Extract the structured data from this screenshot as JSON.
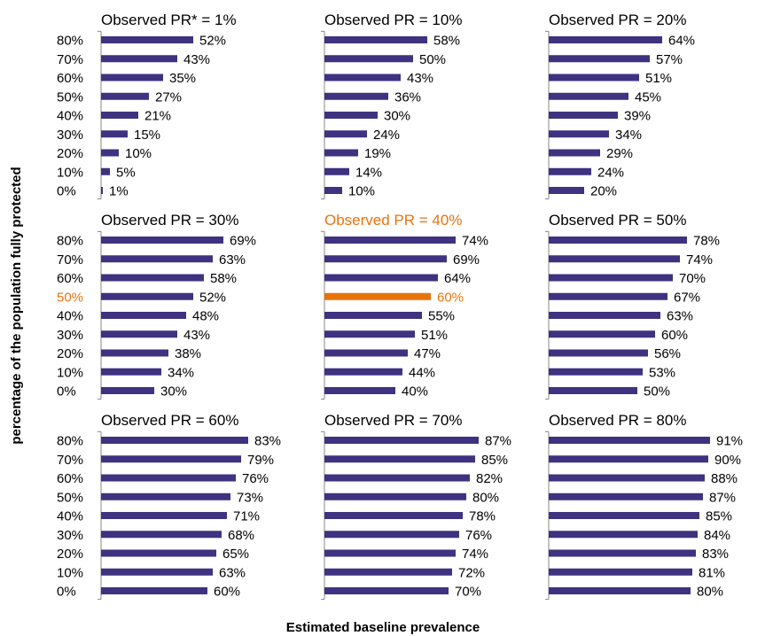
{
  "chart_data": {
    "type": "bar",
    "orientation": "horizontal",
    "xlabel": "Estimated baseline prevalence",
    "ylabel": "percentage of the population fully protected",
    "categories": [
      "80%",
      "70%",
      "60%",
      "50%",
      "40%",
      "30%",
      "20%",
      "10%",
      "0%"
    ],
    "bar_color": "#3f3280",
    "highlight_color": "#e8730c",
    "highlight": {
      "panel": 4,
      "category": "50%"
    },
    "xlim": [
      0,
      100
    ],
    "panels": [
      {
        "title": "Observed PR* = 1%",
        "values": [
          52,
          43,
          35,
          27,
          21,
          15,
          10,
          5,
          1
        ],
        "labels": [
          "52%",
          "43%",
          "35%",
          "27%",
          "21%",
          "15%",
          "10%",
          "5%",
          "1%"
        ]
      },
      {
        "title": "Observed PR = 10%",
        "values": [
          58,
          50,
          43,
          36,
          30,
          24,
          19,
          14,
          10
        ],
        "labels": [
          "58%",
          "50%",
          "43%",
          "36%",
          "30%",
          "24%",
          "19%",
          "14%",
          "10%"
        ]
      },
      {
        "title": "Observed PR = 20%",
        "values": [
          64,
          57,
          51,
          45,
          39,
          34,
          29,
          24,
          20
        ],
        "labels": [
          "64%",
          "57%",
          "51%",
          "45%",
          "39%",
          "34%",
          "29%",
          "24%",
          "20%"
        ]
      },
      {
        "title": "Observed PR = 30%",
        "values": [
          69,
          63,
          58,
          52,
          48,
          43,
          38,
          34,
          30
        ],
        "labels": [
          "69%",
          "63%",
          "58%",
          "52%",
          "48%",
          "43%",
          "38%",
          "34%",
          "30%"
        ]
      },
      {
        "title": "Observed PR = 40%",
        "values": [
          74,
          69,
          64,
          60,
          55,
          51,
          47,
          44,
          40
        ],
        "labels": [
          "74%",
          "69%",
          "64%",
          "60%",
          "55%",
          "51%",
          "47%",
          "44%",
          "40%"
        ]
      },
      {
        "title": "Observed PR = 50%",
        "values": [
          78,
          74,
          70,
          67,
          63,
          60,
          56,
          53,
          50
        ],
        "labels": [
          "78%",
          "74%",
          "70%",
          "67%",
          "63%",
          "60%",
          "56%",
          "53%",
          "50%"
        ]
      },
      {
        "title": "Observed PR = 60%",
        "values": [
          83,
          79,
          76,
          73,
          71,
          68,
          65,
          63,
          60
        ],
        "labels": [
          "83%",
          "79%",
          "76%",
          "73%",
          "71%",
          "68%",
          "65%",
          "63%",
          "60%"
        ]
      },
      {
        "title": "Observed PR = 70%",
        "values": [
          87,
          85,
          82,
          80,
          78,
          76,
          74,
          72,
          70
        ],
        "labels": [
          "87%",
          "85%",
          "82%",
          "80%",
          "78%",
          "76%",
          "74%",
          "72%",
          "70%"
        ]
      },
      {
        "title": "Observed PR = 80%",
        "values": [
          91,
          90,
          88,
          87,
          85,
          84,
          83,
          81,
          80
        ],
        "labels": [
          "91%",
          "90%",
          "88%",
          "87%",
          "85%",
          "84%",
          "83%",
          "81%",
          "80%"
        ]
      }
    ]
  }
}
